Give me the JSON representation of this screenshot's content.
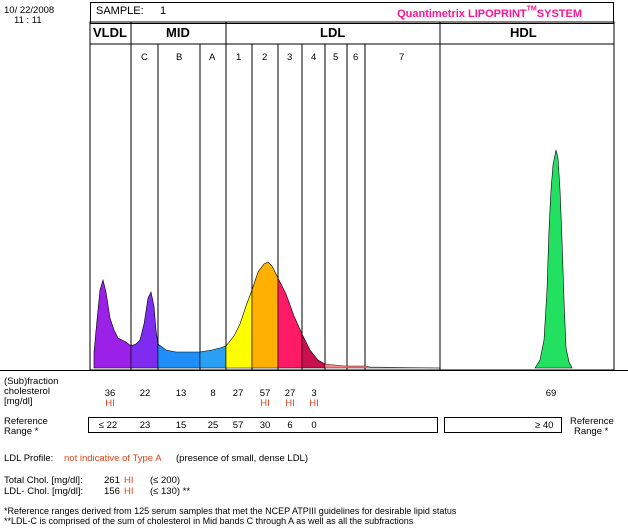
{
  "header": {
    "date": "10/ 22/2008",
    "time": "11 : 11",
    "sample_label": "SAMPLE:",
    "sample_number": "1",
    "system_name": "Quantimetrix LIPOPRINT",
    "system_tm": "TM",
    "system_suffix": "SYSTEM"
  },
  "bands": {
    "vldl": "VLDL",
    "mid": "MID",
    "ldl": "LDL",
    "hdl": "HDL",
    "mid_sub": [
      "C",
      "B",
      "A"
    ],
    "ldl_sub": [
      "1",
      "2",
      "3",
      "4",
      "5",
      "6",
      "7"
    ]
  },
  "colors": {
    "vldl": "#9b20e8",
    "mid_c": "#7d2cf0",
    "mid_b": "#1f8ef8",
    "mid_a": "#2aa0f4",
    "ldl1": "#ffff00",
    "ldl2": "#ffb000",
    "ldl3": "#ff1a66",
    "hdl": "#22e060",
    "hi": "#e0451c",
    "system_title": "#ff1493"
  },
  "table": {
    "row_label": [
      "(Sub)fraction",
      "cholesterol",
      "[mg/dl]"
    ],
    "values": {
      "vldl": "36",
      "c": "22",
      "b": "13",
      "a": "8",
      "ldl1": "27",
      "ldl2": "57",
      "ldl3": "27",
      "ldl4": "3",
      "hdl": "69"
    },
    "hi_flags": {
      "vldl": "HI",
      "ldl2": "HI",
      "ldl3": "HI",
      "ldl4": "HI"
    },
    "ref_label": [
      "Reference",
      "Range *"
    ],
    "ref_left": {
      "vldl": "≤ 22",
      "c": "23",
      "b": "15",
      "a": "25",
      "ldl1": "57",
      "ldl2": "30",
      "ldl3": "6",
      "ldl4": "0"
    },
    "ref_hdl": "≥ 40",
    "ref_label_right": [
      "Reference",
      "Range *"
    ]
  },
  "profile": {
    "label": "LDL Profile:",
    "result": "not indicative of Type A",
    "note": "(presence of small, dense LDL)"
  },
  "totals": {
    "total_label": "Total Chol. [mg/dl]:",
    "total_value": "261",
    "total_flag": "HI",
    "total_range": "(≤ 200)",
    "ldl_label": "LDL- Chol. [mg/dl]:",
    "ldl_value": "156",
    "ldl_flag": "HI",
    "ldl_range": "(≤ 130) **"
  },
  "footnotes": {
    "line1": "*Reference ranges derived from 125 serum samples that met the NCEP ATPIII guidelines for desirable lipid status",
    "line2": "**LDL-C is comprised of the sum of cholesterol in Mid bands C through A as well as all the subfractions"
  },
  "chart_data": {
    "type": "area",
    "title": "",
    "xlabel": "",
    "ylabel": "",
    "description_bands": [
      "VLDL",
      "C",
      "B",
      "A",
      "1",
      "2",
      "3",
      "4",
      "5",
      "6",
      "7",
      "HDL"
    ]
  }
}
